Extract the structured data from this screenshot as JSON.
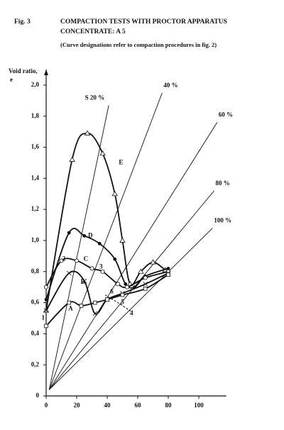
{
  "chart_data": {
    "type": "line",
    "figure": "Fig. 3",
    "title": "COMPACTION TESTS WITH PROCTOR APPARATUS",
    "subtitle": "CONCENTRATE: A 5",
    "note": "(Curve designations refer to compaction procedures in fig. 2)",
    "ylabel": "Void ratio,",
    "ylabel_symbol": "e",
    "xlim": [
      0,
      118
    ],
    "ylim": [
      0,
      2.1
    ],
    "xticks": [
      0,
      20,
      40,
      60,
      80,
      100
    ],
    "yticks": [
      0,
      {
        "value": 0.2,
        "label": "0,2"
      },
      {
        "value": 0.4,
        "label": "0,4"
      },
      {
        "value": 0.6,
        "label": "0,6"
      },
      {
        "value": 0.8,
        "label": "0,8"
      },
      {
        "value": 1.0,
        "label": "1,0"
      },
      {
        "value": 1.2,
        "label": "1,2"
      },
      {
        "value": 1.4,
        "label": "1,4"
      },
      {
        "value": 1.6,
        "label": "1,6"
      },
      {
        "value": 1.8,
        "label": "1,8"
      },
      {
        "value": 2.0,
        "label": "2,0"
      }
    ],
    "color": "#111111",
    "series": [
      {
        "name": "E",
        "marker": "triangle",
        "x": [
          0,
          17,
          27,
          37,
          45,
          50,
          55,
          62,
          70,
          78
        ],
        "values": [
          0.55,
          1.52,
          1.69,
          1.56,
          1.3,
          1.0,
          0.72,
          0.8,
          0.86,
          0.81
        ]
      },
      {
        "name": "D",
        "marker": "dot",
        "x": [
          0,
          15,
          25,
          35,
          45,
          52,
          58,
          65,
          80
        ],
        "values": [
          0.62,
          1.05,
          1.03,
          0.98,
          0.88,
          0.72,
          0.7,
          0.77,
          0.82
        ]
      },
      {
        "name": "C",
        "marker": "circle",
        "x": [
          0,
          10,
          20,
          30,
          37,
          47,
          53,
          65,
          80
        ],
        "values": [
          0.7,
          0.87,
          0.87,
          0.82,
          0.8,
          0.72,
          0.7,
          0.76,
          0.8
        ]
      },
      {
        "name": "B",
        "marker": "cross",
        "x": [
          0,
          15,
          25,
          32,
          40,
          50,
          65,
          80
        ],
        "values": [
          0.55,
          0.79,
          0.74,
          0.53,
          0.62,
          0.66,
          0.72,
          0.79
        ]
      },
      {
        "name": "A",
        "marker": "square",
        "x": [
          0,
          15,
          23,
          32,
          40,
          50,
          65,
          80
        ],
        "values": [
          0.45,
          0.6,
          0.58,
          0.6,
          0.62,
          0.65,
          0.69,
          0.78
        ]
      }
    ],
    "saturation_lines": [
      {
        "name": "S 20 %",
        "x": [
          2,
          41
        ],
        "values": [
          0.04,
          1.87
        ]
      },
      {
        "name": "40 %",
        "x": [
          2,
          76
        ],
        "values": [
          0.04,
          1.95
        ]
      },
      {
        "name": "60 %",
        "x": [
          2,
          112
        ],
        "values": [
          0.04,
          1.76
        ]
      },
      {
        "name": "80 %",
        "x": [
          2,
          110
        ],
        "values": [
          0.04,
          1.32
        ]
      },
      {
        "name": "100 %",
        "x": [
          2,
          109
        ],
        "values": [
          0.04,
          1.08
        ]
      }
    ],
    "dashed_line": {
      "x": [
        38.6,
        47,
        56.3
      ],
      "values": [
        0.65,
        0.6,
        0.54
      ]
    },
    "annotations": [
      {
        "text": "1",
        "x": -2,
        "y": 0.5
      },
      {
        "text": "2",
        "x": 11.6,
        "y": 0.88
      },
      {
        "text": "3",
        "x": 36,
        "y": 0.83
      },
      {
        "text": "6",
        "x": 43,
        "y": 0.67
      },
      {
        "text": "5",
        "x": 50,
        "y": 0.6
      },
      {
        "text": "4",
        "x": 56,
        "y": 0.53
      }
    ]
  }
}
